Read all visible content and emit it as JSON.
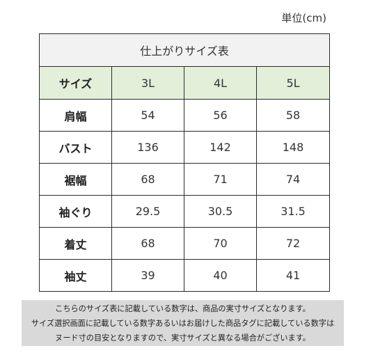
{
  "unit_label": "単位(cm)",
  "table": {
    "title": "仕上がりサイズ表",
    "header": {
      "corner": "サイズ",
      "sizes": [
        "3L",
        "4L",
        "5L"
      ]
    },
    "rows": [
      {
        "label": "肩幅",
        "values": [
          "54",
          "56",
          "58"
        ]
      },
      {
        "label": "バスト",
        "values": [
          "136",
          "142",
          "148"
        ]
      },
      {
        "label": "裾幅",
        "values": [
          "68",
          "71",
          "74"
        ]
      },
      {
        "label": "袖ぐり",
        "values": [
          "29.5",
          "30.5",
          "31.5"
        ]
      },
      {
        "label": "着丈",
        "values": [
          "68",
          "70",
          "72"
        ]
      },
      {
        "label": "袖丈",
        "values": [
          "39",
          "40",
          "41"
        ]
      }
    ]
  },
  "note": {
    "lines": [
      "こちらのサイズ表に記載している数字は、商品の実寸サイズとなります。",
      "サイズ選択画面に記載している数字あるいはお届けした商品タグに記載している数字は",
      "ヌード寸の目安となりますので、実寸サイズと異なる場合がございます。"
    ]
  },
  "colors": {
    "header_green": "#e3efd9",
    "title_gray": "#f2f2f2",
    "note_gray": "#d9d9d9",
    "border": "#2a2a2a"
  }
}
